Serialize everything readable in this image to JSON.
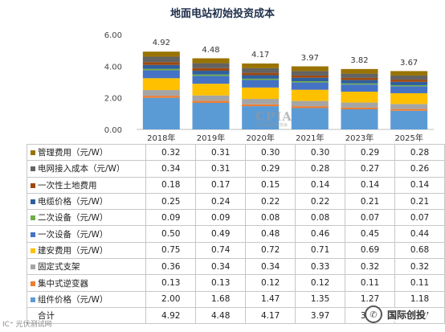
{
  "title": "地面电站初始投资成本",
  "watermark": {
    "text": "CPIA",
    "subtext": "中国光伏行业协会"
  },
  "footer_left": "IC⁺ 光伏测试网",
  "brand": {
    "icon": "wechat-icon",
    "text": "国际创投"
  },
  "chart_data": {
    "type": "bar",
    "stacked": true,
    "title": "地面电站初始投资成本",
    "categories": [
      "2018年",
      "2019年",
      "2020年",
      "2021年",
      "2023年",
      "2025年"
    ],
    "ylim": [
      0,
      6
    ],
    "yticks": [
      "0.00",
      "2.00",
      "4.00",
      "6.00"
    ],
    "grid": false,
    "series": [
      {
        "name": "组件价格（元/W）",
        "color": "#5b9bd5",
        "values": [
          2.0,
          1.68,
          1.47,
          1.35,
          1.27,
          1.18
        ]
      },
      {
        "name": "集中式逆变器",
        "color": "#ed7d31",
        "values": [
          0.13,
          0.13,
          0.12,
          0.12,
          0.11,
          0.11
        ]
      },
      {
        "name": "固定式支架",
        "color": "#a5a5a5",
        "values": [
          0.36,
          0.34,
          0.34,
          0.33,
          0.32,
          0.32
        ]
      },
      {
        "name": "建安费用（元/W）",
        "color": "#ffc000",
        "values": [
          0.75,
          0.74,
          0.72,
          0.71,
          0.69,
          0.68
        ]
      },
      {
        "name": "一次设备（元/W）",
        "color": "#4472c4",
        "values": [
          0.5,
          0.49,
          0.48,
          0.46,
          0.45,
          0.44
        ]
      },
      {
        "name": "二次设备（元/W）",
        "color": "#70ad47",
        "values": [
          0.09,
          0.09,
          0.08,
          0.08,
          0.07,
          0.07
        ]
      },
      {
        "name": "电缆价格（元/W）",
        "color": "#2e5f9e",
        "values": [
          0.25,
          0.24,
          0.22,
          0.22,
          0.21,
          0.21
        ]
      },
      {
        "name": "一次性土地费用",
        "color": "#9e480e",
        "values": [
          0.18,
          0.17,
          0.15,
          0.14,
          0.14,
          0.14
        ]
      },
      {
        "name": "电网接入成本（元/W）",
        "color": "#636363",
        "values": [
          0.34,
          0.31,
          0.29,
          0.28,
          0.27,
          0.26
        ]
      },
      {
        "name": "管理费用（元/W）",
        "color": "#997300",
        "values": [
          0.32,
          0.31,
          0.3,
          0.3,
          0.29,
          0.28
        ]
      }
    ],
    "totals": {
      "name": "合计",
      "values": [
        4.92,
        4.48,
        4.17,
        3.97,
        3.82,
        3.67
      ]
    }
  }
}
